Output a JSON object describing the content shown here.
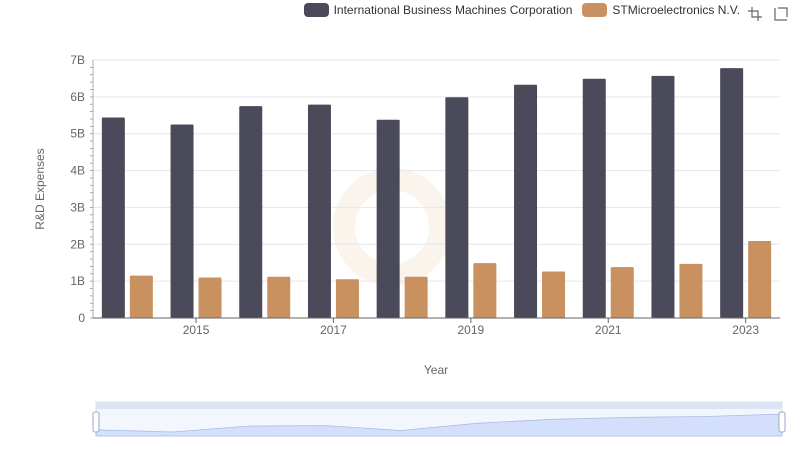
{
  "legend": {
    "items": [
      {
        "label": "International Business Machines Corporation",
        "color": "#4a4a5a"
      },
      {
        "label": "STMicroelectronics N.V.",
        "color": "#c8915f"
      }
    ]
  },
  "toolbox": {
    "icons": [
      "zoom-icon",
      "restore-zoom-icon"
    ]
  },
  "chart_data": {
    "type": "bar",
    "categories": [
      "2014",
      "2015",
      "2016",
      "2017",
      "2018",
      "2019",
      "2020",
      "2021",
      "2022",
      "2023"
    ],
    "x_tick_labels": [
      "2015",
      "2017",
      "2019",
      "2021",
      "2023"
    ],
    "series": [
      {
        "name": "International Business Machines Corporation",
        "color": "#4a4a5a",
        "values": [
          5.44,
          5.25,
          5.75,
          5.79,
          5.38,
          5.99,
          6.33,
          6.49,
          6.57,
          6.78
        ]
      },
      {
        "name": "STMicroelectronics N.V.",
        "color": "#c8915f",
        "values": [
          1.15,
          1.1,
          1.12,
          1.05,
          1.12,
          1.49,
          1.26,
          1.38,
          1.47,
          2.09
        ]
      }
    ],
    "y_ticks": [
      "0",
      "1B",
      "2B",
      "3B",
      "4B",
      "5B",
      "6B",
      "7B"
    ],
    "ylim": [
      0,
      7
    ],
    "xlabel": "Year",
    "ylabel": "R&D Expenses",
    "grid": true
  }
}
